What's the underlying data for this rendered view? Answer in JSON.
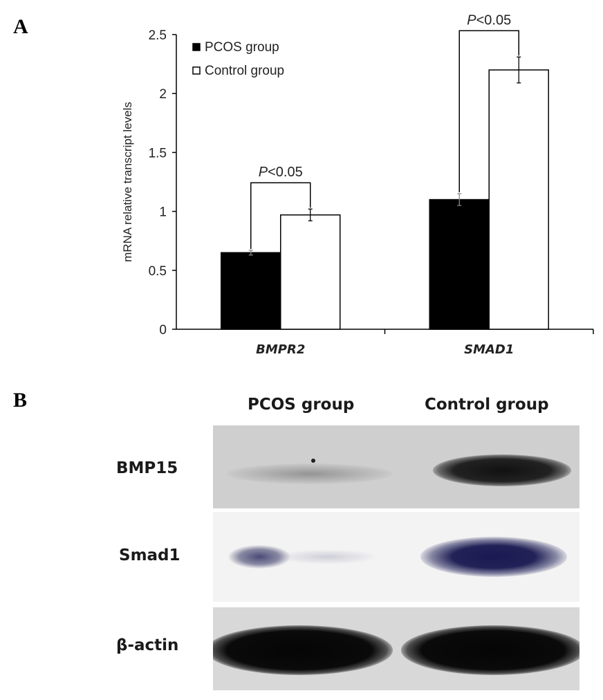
{
  "panels": {
    "a_label": "A",
    "b_label": "B"
  },
  "chart_data": {
    "type": "bar",
    "ylabel": "mRNA relative transcript levels",
    "ylim": [
      0,
      2.5
    ],
    "yticks": [
      0,
      0.5,
      1,
      1.5,
      2,
      2.5
    ],
    "ytick_labels": [
      "0",
      "0.5",
      "1",
      "1.5",
      "2",
      "2.5"
    ],
    "categories": [
      "BMPR2",
      "SMAD1"
    ],
    "series": [
      {
        "name": "PCOS group",
        "values": [
          0.65,
          1.1
        ],
        "errors": [
          0.02,
          0.05
        ],
        "color": "#000000"
      },
      {
        "name": "Control group",
        "values": [
          0.97,
          2.2
        ],
        "errors": [
          0.05,
          0.11
        ],
        "color": "#ffffff"
      }
    ],
    "annotations": [
      {
        "category": "BMPR2",
        "text_italic": "P",
        "text_rest": "<0.05"
      },
      {
        "category": "SMAD1",
        "text_italic": "P",
        "text_rest": "<0.05"
      }
    ],
    "legend_position": "top-left",
    "grid": false
  },
  "western_blot": {
    "lanes": [
      "PCOS group",
      "Control group"
    ],
    "rows": [
      {
        "label": "BMP15"
      },
      {
        "label": "Smad1"
      },
      {
        "label": "β-actin"
      }
    ]
  }
}
